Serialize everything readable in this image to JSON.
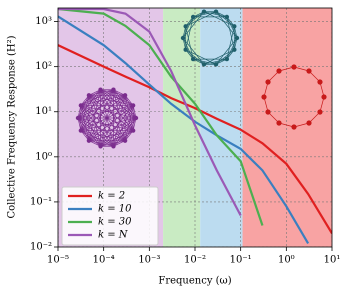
{
  "chart_data": {
    "type": "line",
    "x_label": "Frequency (ω)",
    "y_label": "Collective Frequency Response (H²)",
    "log_x": true,
    "log_y": true,
    "grid": true,
    "xlim": [
      1e-05,
      10
    ],
    "ylim": [
      0.01,
      2000
    ],
    "xticks": [
      {
        "value": 1e-05,
        "label": "10⁻⁵"
      },
      {
        "value": 0.0001,
        "label": "10⁻⁴"
      },
      {
        "value": 0.001,
        "label": "10⁻³"
      },
      {
        "value": 0.01,
        "label": "10⁻²"
      },
      {
        "value": 0.1,
        "label": "10⁻¹"
      },
      {
        "value": 1,
        "label": "10⁰"
      },
      {
        "value": 10,
        "label": "10¹"
      }
    ],
    "yticks": [
      {
        "value": 0.01,
        "label": "10⁻²"
      },
      {
        "value": 0.1,
        "label": "10⁻¹"
      },
      {
        "value": 1,
        "label": "10⁰"
      },
      {
        "value": 10,
        "label": "10¹"
      },
      {
        "value": 100,
        "label": "10²"
      },
      {
        "value": 1000,
        "label": "10³"
      }
    ],
    "regions": [
      {
        "x0": 1e-05,
        "x1": 0.002,
        "color": "#e3c6e8"
      },
      {
        "x0": 0.002,
        "x1": 0.013,
        "color": "#c9ebc3"
      },
      {
        "x0": 0.013,
        "x1": 0.11,
        "color": "#bcdcf0"
      },
      {
        "x0": 0.11,
        "x1": 10,
        "color": "#f8a3a3"
      }
    ],
    "legend_position": "lower left",
    "x": [
      1e-05,
      0.0001,
      0.0003,
      0.001,
      0.003,
      0.01,
      0.03,
      0.1,
      0.3,
      1,
      3,
      10
    ],
    "series": [
      {
        "name": "k = 2",
        "color": "#e02020",
        "values": [
          300,
          100,
          60,
          35,
          20,
          12,
          7,
          4,
          2,
          0.7,
          0.15,
          0.02
        ]
      },
      {
        "name": "k = 10",
        "color": "#3a7fc0",
        "values": [
          1300,
          300,
          120,
          40,
          15,
          6,
          3,
          1.5,
          0.5,
          0.08,
          0.012,
          null
        ]
      },
      {
        "name": "k = 30",
        "color": "#4caf50",
        "values": [
          1900,
          1500,
          800,
          300,
          60,
          15,
          3,
          0.8,
          0.03,
          null,
          null,
          null
        ]
      },
      {
        "name": "k = N",
        "color": "#9b59b6",
        "values": [
          1900,
          1900,
          1500,
          600,
          80,
          5,
          0.5,
          0.05,
          null,
          null,
          null,
          null
        ]
      }
    ]
  }
}
